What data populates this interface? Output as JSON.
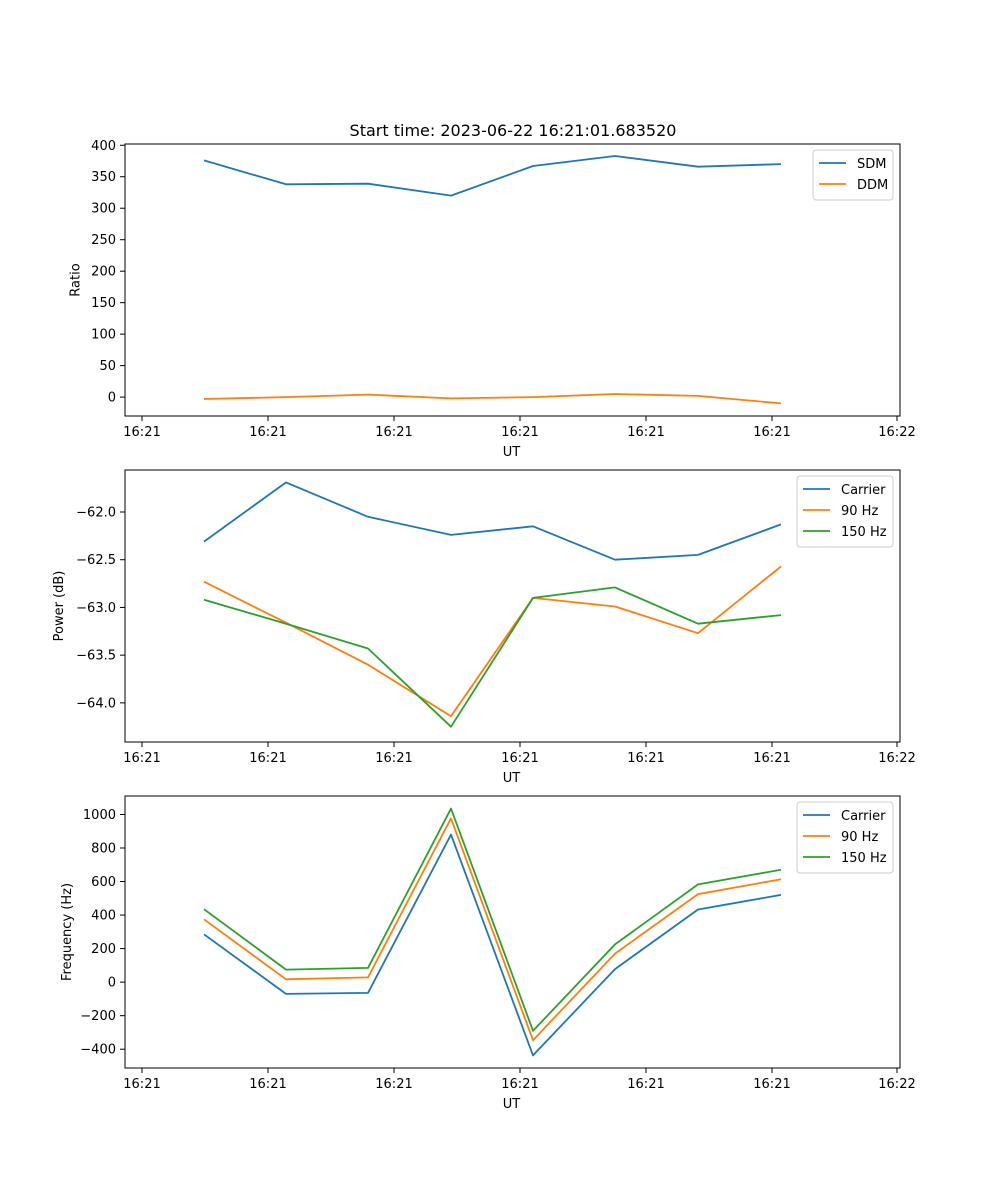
{
  "figure_title": "Start time: 2023-06-22 16:21:01.683520",
  "chart_data": [
    {
      "type": "line",
      "title": "Start time: 2023-06-22 16:21:01.683520",
      "xlabel": "UT",
      "ylabel": "Ratio",
      "x_tick_labels": [
        "16:21",
        "16:21",
        "16:21",
        "16:21",
        "16:21",
        "16:21",
        "16:22"
      ],
      "y_ticks": [
        0,
        50,
        100,
        150,
        200,
        250,
        300,
        350,
        400
      ],
      "ylim": [
        -30,
        402
      ],
      "grid": false,
      "legend_position": "top-right",
      "series": [
        {
          "name": "SDM",
          "color": "#1f77b4",
          "values": [
            376,
            338,
            339,
            320,
            367,
            383,
            366,
            370
          ]
        },
        {
          "name": "DDM",
          "color": "#ff7f0e",
          "values": [
            -3,
            0,
            4,
            -2,
            0,
            5,
            2,
            -10
          ]
        }
      ]
    },
    {
      "type": "line",
      "title": "",
      "xlabel": "UT",
      "ylabel": "Power (dB)",
      "x_tick_labels": [
        "16:21",
        "16:21",
        "16:21",
        "16:21",
        "16:21",
        "16:21",
        "16:22"
      ],
      "y_ticks": [
        -62.0,
        -62.5,
        -63.0,
        -63.5,
        -64.0
      ],
      "y_tick_labels": [
        "−62.0",
        "−62.5",
        "−63.0",
        "−63.5",
        "−64.0"
      ],
      "ylim": [
        -64.41,
        -61.56
      ],
      "grid": false,
      "legend_position": "top-right",
      "series": [
        {
          "name": "Carrier",
          "color": "#1f77b4",
          "values": [
            -62.31,
            -61.69,
            -62.05,
            -62.24,
            -62.15,
            -62.5,
            -62.45,
            -62.13
          ]
        },
        {
          "name": "90 Hz",
          "color": "#ff7f0e",
          "values": [
            -62.73,
            -63.16,
            -63.6,
            -64.14,
            -62.9,
            -62.99,
            -63.27,
            -62.57
          ]
        },
        {
          "name": "150 Hz",
          "color": "#2ca02c",
          "values": [
            -62.92,
            -63.17,
            -63.43,
            -64.25,
            -62.9,
            -62.79,
            -63.17,
            -63.08
          ]
        }
      ]
    },
    {
      "type": "line",
      "title": "",
      "xlabel": "UT",
      "ylabel": "Frequency (Hz)",
      "x_tick_labels": [
        "16:21",
        "16:21",
        "16:21",
        "16:21",
        "16:21",
        "16:21",
        "16:22"
      ],
      "y_ticks": [
        -400,
        -200,
        0,
        200,
        400,
        600,
        800,
        1000
      ],
      "y_tick_labels": [
        "−400",
        "−200",
        "0",
        "200",
        "400",
        "600",
        "800",
        "1000"
      ],
      "ylim": [
        -512,
        1110
      ],
      "grid": false,
      "legend_position": "top-right",
      "series": [
        {
          "name": "Carrier",
          "color": "#1f77b4",
          "values": [
            285,
            -70,
            -64,
            880,
            -437,
            78,
            433,
            520
          ]
        },
        {
          "name": "90 Hz",
          "color": "#ff7f0e",
          "values": [
            375,
            17,
            28,
            977,
            -346,
            170,
            525,
            613
          ]
        },
        {
          "name": "150 Hz",
          "color": "#2ca02c",
          "values": [
            435,
            75,
            85,
            1035,
            -290,
            225,
            583,
            670
          ]
        }
      ]
    }
  ]
}
